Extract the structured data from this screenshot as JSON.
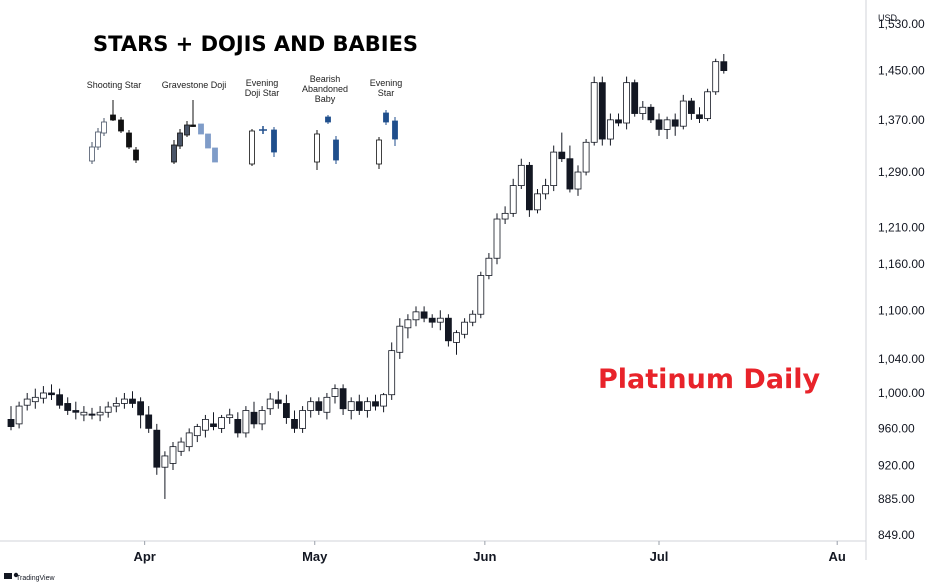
{
  "header": {
    "title": "STARS + DOJIS AND BABIES",
    "subtitle": "Platinum Daily",
    "subtitle_color": "#e8232a",
    "currency": "USD",
    "brand": "TradingView"
  },
  "legend": {
    "patterns": [
      {
        "name": "Shooting Star",
        "lines": [
          "Shooting Star"
        ]
      },
      {
        "name": "Gravestone Doji",
        "lines": [
          "Gravestone Doji"
        ]
      },
      {
        "name": "Evening Doji Star",
        "lines": [
          "Evening",
          "Doji Star"
        ]
      },
      {
        "name": "Bearish Abandoned Baby",
        "lines": [
          "Bearish",
          "Abandoned",
          "Baby"
        ]
      },
      {
        "name": "Evening Star",
        "lines": [
          "Evening",
          "Star"
        ]
      }
    ],
    "colors": {
      "bull": "#ffffff",
      "bear_dark": "#111111",
      "bear_blue": "#1f4e8c",
      "light_blue": "#7f9cc8",
      "gray": "#4a5568"
    }
  },
  "chart_data": {
    "type": "candlestick",
    "title": "Platinum Daily",
    "y_scale": "log",
    "ylim": [
      840,
      1530
    ],
    "y_ticks": [
      "849.00",
      "885.00",
      "920.00",
      "960.00",
      "1,000.00",
      "1,040.00",
      "1,100.00",
      "1,160.00",
      "1,210.00",
      "1,290.00",
      "1,370.00",
      "1,450.00",
      "1,530.00"
    ],
    "y_tick_values": [
      849,
      885,
      920,
      960,
      1000,
      1040,
      1100,
      1160,
      1210,
      1290,
      1370,
      1450,
      1530
    ],
    "x_ticks": [
      {
        "label": "Apr",
        "index": 16.5
      },
      {
        "label": "May",
        "index": 37.5
      },
      {
        "label": "Jun",
        "index": 58.5
      },
      {
        "label": "Jul",
        "index": 80
      },
      {
        "label": "Au",
        "index": 102
      }
    ],
    "candles": [
      [
        970,
        985,
        958,
        962
      ],
      [
        965,
        990,
        960,
        985
      ],
      [
        986,
        1000,
        980,
        993
      ],
      [
        990,
        1005,
        982,
        995
      ],
      [
        994,
        1008,
        988,
        1000
      ],
      [
        1000,
        1010,
        992,
        998
      ],
      [
        998,
        1005,
        982,
        986
      ],
      [
        988,
        995,
        975,
        980
      ],
      [
        980,
        990,
        970,
        978
      ],
      [
        975,
        985,
        968,
        978
      ],
      [
        976,
        983,
        970,
        975
      ],
      [
        975,
        985,
        968,
        978
      ],
      [
        978,
        990,
        972,
        984
      ],
      [
        985,
        995,
        978,
        988
      ],
      [
        988,
        1000,
        982,
        993
      ],
      [
        993,
        1002,
        983,
        988
      ],
      [
        990,
        995,
        960,
        975
      ],
      [
        975,
        985,
        955,
        960
      ],
      [
        958,
        965,
        910,
        918
      ],
      [
        918,
        935,
        885,
        930
      ],
      [
        922,
        945,
        915,
        940
      ],
      [
        935,
        950,
        930,
        945
      ],
      [
        940,
        960,
        935,
        955
      ],
      [
        952,
        965,
        945,
        962
      ],
      [
        958,
        975,
        950,
        970
      ],
      [
        965,
        978,
        958,
        962
      ],
      [
        960,
        975,
        955,
        972
      ],
      [
        972,
        982,
        965,
        975
      ],
      [
        970,
        978,
        950,
        955
      ],
      [
        955,
        985,
        950,
        980
      ],
      [
        978,
        990,
        960,
        965
      ],
      [
        965,
        985,
        958,
        980
      ],
      [
        982,
        1000,
        975,
        993
      ],
      [
        992,
        1002,
        982,
        988
      ],
      [
        988,
        998,
        965,
        972
      ],
      [
        970,
        980,
        955,
        960
      ],
      [
        960,
        985,
        955,
        980
      ],
      [
        980,
        995,
        972,
        990
      ],
      [
        990,
        995,
        975,
        980
      ],
      [
        978,
        1000,
        970,
        995
      ],
      [
        996,
        1010,
        988,
        1005
      ],
      [
        1005,
        1010,
        975,
        982
      ],
      [
        980,
        995,
        970,
        990
      ],
      [
        990,
        998,
        975,
        980
      ],
      [
        980,
        995,
        972,
        990
      ],
      [
        990,
        998,
        980,
        985
      ],
      [
        985,
        1000,
        978,
        998
      ],
      [
        998,
        1060,
        992,
        1050
      ],
      [
        1048,
        1090,
        1040,
        1080
      ],
      [
        1078,
        1095,
        1065,
        1088
      ],
      [
        1088,
        1105,
        1080,
        1098
      ],
      [
        1098,
        1105,
        1085,
        1090
      ],
      [
        1090,
        1095,
        1078,
        1085
      ],
      [
        1085,
        1100,
        1075,
        1090
      ],
      [
        1090,
        1095,
        1055,
        1062
      ],
      [
        1060,
        1075,
        1045,
        1072
      ],
      [
        1070,
        1090,
        1065,
        1085
      ],
      [
        1085,
        1100,
        1080,
        1095
      ],
      [
        1095,
        1150,
        1090,
        1145
      ],
      [
        1145,
        1175,
        1140,
        1168
      ],
      [
        1168,
        1230,
        1160,
        1222
      ],
      [
        1222,
        1240,
        1215,
        1230
      ],
      [
        1230,
        1280,
        1225,
        1270
      ],
      [
        1270,
        1310,
        1265,
        1300
      ],
      [
        1300,
        1305,
        1225,
        1235
      ],
      [
        1235,
        1265,
        1230,
        1258
      ],
      [
        1258,
        1280,
        1250,
        1270
      ],
      [
        1270,
        1330,
        1262,
        1320
      ],
      [
        1320,
        1350,
        1305,
        1310
      ],
      [
        1310,
        1330,
        1260,
        1265
      ],
      [
        1265,
        1300,
        1255,
        1290
      ],
      [
        1290,
        1340,
        1285,
        1335
      ],
      [
        1335,
        1440,
        1330,
        1430
      ],
      [
        1430,
        1440,
        1330,
        1340
      ],
      [
        1340,
        1380,
        1330,
        1370
      ],
      [
        1370,
        1380,
        1360,
        1365
      ],
      [
        1365,
        1440,
        1355,
        1430
      ],
      [
        1430,
        1435,
        1375,
        1380
      ],
      [
        1380,
        1400,
        1370,
        1390
      ],
      [
        1390,
        1395,
        1365,
        1370
      ],
      [
        1370,
        1380,
        1345,
        1355
      ],
      [
        1355,
        1375,
        1340,
        1370
      ],
      [
        1370,
        1380,
        1345,
        1360
      ],
      [
        1360,
        1410,
        1355,
        1400
      ],
      [
        1400,
        1405,
        1370,
        1380
      ],
      [
        1378,
        1390,
        1365,
        1372
      ],
      [
        1372,
        1420,
        1368,
        1415
      ],
      [
        1415,
        1470,
        1410,
        1465
      ],
      [
        1465,
        1478,
        1445,
        1450
      ]
    ],
    "grid": false
  }
}
